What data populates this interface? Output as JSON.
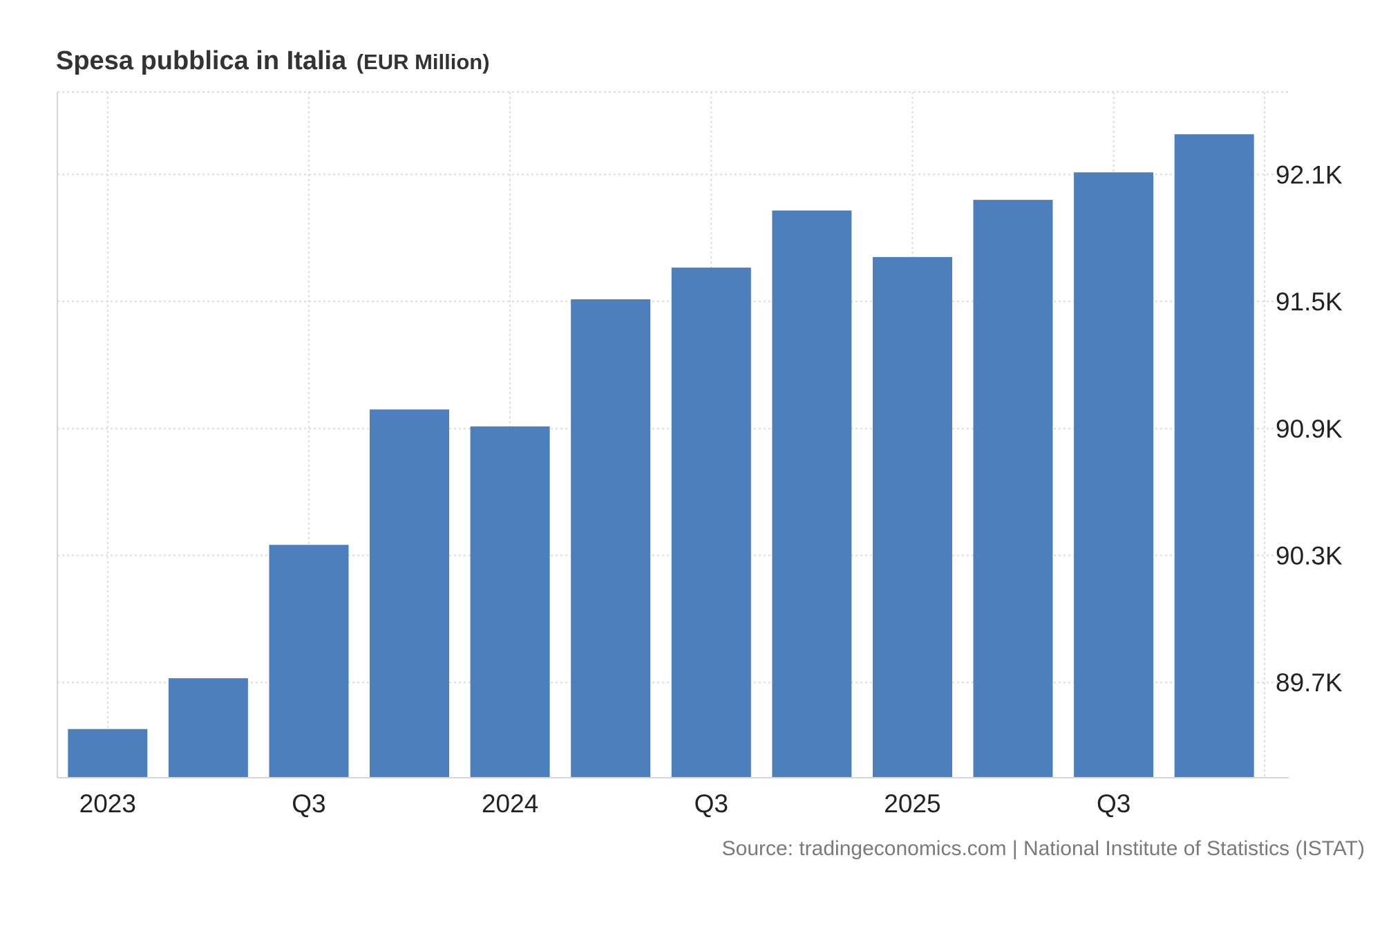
{
  "chart_data": {
    "type": "bar",
    "title": "Spesa pubblica in Italia",
    "title_unit": "(EUR Million)",
    "xlabel": "",
    "ylabel": "",
    "categories": [
      "2023 Q1",
      "2023 Q2",
      "2023 Q3",
      "2023 Q4",
      "2024 Q1",
      "2024 Q2",
      "2024 Q3",
      "2024 Q4",
      "2025 Q1",
      "2025 Q2",
      "2025 Q3",
      "2025 Q4"
    ],
    "values": [
      89.48,
      89.72,
      90.35,
      90.99,
      90.91,
      91.51,
      91.66,
      91.93,
      91.71,
      91.98,
      92.11,
      92.29
    ],
    "x_tick_labels": [
      {
        "category": "2023 Q1",
        "label": "2023"
      },
      {
        "category": "2023 Q3",
        "label": "Q3"
      },
      {
        "category": "2024 Q1",
        "label": "2024"
      },
      {
        "category": "2024 Q3",
        "label": "Q3"
      },
      {
        "category": "2025 Q1",
        "label": "2025"
      },
      {
        "category": "2025 Q3",
        "label": "Q3"
      }
    ],
    "y_ticks": [
      {
        "value": 89.7,
        "label": "89.7K"
      },
      {
        "value": 90.3,
        "label": "90.3K"
      },
      {
        "value": 90.9,
        "label": "90.9K"
      },
      {
        "value": 91.5,
        "label": "91.5K"
      },
      {
        "value": 92.1,
        "label": "92.1K"
      }
    ],
    "ylim": [
      89.25,
      92.49
    ],
    "y_axis_position": "right",
    "grid": true,
    "legend": "none",
    "bar_color": "#4e7fbd",
    "source": "Source: tradingeconomics.com | National Institute of Statistics (ISTAT)"
  }
}
